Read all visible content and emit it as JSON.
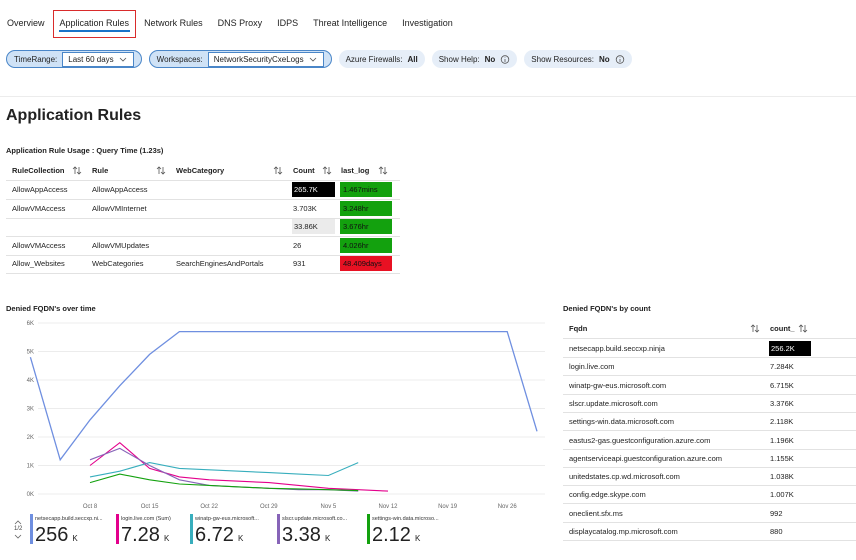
{
  "tabs": {
    "items": [
      "Overview",
      "Application Rules",
      "Network Rules",
      "DNS Proxy",
      "IDPS",
      "Threat Intelligence",
      "Investigation"
    ],
    "selected": 1
  },
  "filters": [
    {
      "label": "TimeRange:",
      "value": "Last 60 days",
      "style": "dropdown"
    },
    {
      "label": "Workspaces:",
      "value": "NetworkSecurityCxeLogs",
      "style": "dropdown"
    },
    {
      "label": "Azure Firewalls:",
      "value": "All",
      "style": "pill"
    },
    {
      "label": "Show Help:",
      "value": "No",
      "style": "info"
    },
    {
      "label": "Show Resources:",
      "value": "No",
      "style": "info"
    }
  ],
  "heading": "Application Rules",
  "usage_table": {
    "title": "Application Rule Usage : Query Time (1.23s)",
    "columns": [
      "RuleCollection",
      "Rule",
      "WebCategory",
      "Count",
      "last_log"
    ],
    "rows": [
      [
        "AllowAppAccess",
        "AllowAppAccess",
        "",
        "265.7K",
        "1.467mins"
      ],
      [
        "AllowVMAccess",
        "AllowVMInternet",
        "",
        "3.703K",
        "3.248hr"
      ],
      [
        "",
        "",
        "",
        "33.86K",
        "3.676hr"
      ],
      [
        "AllowVMAccess",
        "AllowVMUpdates",
        "",
        "26",
        "4.026hr"
      ],
      [
        "Allow_Websites",
        "WebCategories",
        "SearchEnginesAndPortals",
        "931",
        "48.409days"
      ]
    ],
    "count_bg": [
      "#000000",
      null,
      "#ebebeb",
      null,
      null
    ],
    "last_log_bg": [
      "#13a10e",
      "#13a10e",
      "#13a10e",
      "#13a10e",
      "#e81123"
    ]
  },
  "chart_data": {
    "type": "line",
    "title": "Denied FQDN's over time",
    "x": [
      "Oct 1",
      "Oct 4",
      "Oct 8",
      "Oct 11",
      "Oct 15",
      "Oct 18",
      "Oct 22",
      "Oct 25",
      "Oct 29",
      "Nov 1",
      "Nov 5",
      "Nov 8",
      "Nov 12",
      "Nov 15",
      "Nov 19",
      "Nov 22",
      "Nov 26",
      "Nov 29"
    ],
    "xticks": [
      "Oct 8",
      "Oct 15",
      "Oct 22",
      "Oct 29",
      "Nov 5",
      "Nov 12",
      "Nov 19",
      "Nov 26"
    ],
    "ylim": [
      0,
      6000
    ],
    "yticks": [
      {
        "value": 0,
        "label": "0K"
      },
      {
        "value": 1000,
        "label": "1K"
      },
      {
        "value": 2000,
        "label": "2K"
      },
      {
        "value": 3000,
        "label": "3K"
      },
      {
        "value": 4000,
        "label": "4K"
      },
      {
        "value": 5000,
        "label": "5K"
      },
      {
        "value": 6000,
        "label": "6K"
      }
    ],
    "grid": true,
    "legend_page": "1/2",
    "series": [
      {
        "name": "netsecapp.build.seccxp.ni...",
        "color": "#6f8fe0",
        "total_label": "256",
        "total_unit": "K",
        "values": [
          4800,
          1200,
          2600,
          3800,
          4900,
          5700,
          5700,
          5700,
          5700,
          5700,
          5700,
          5700,
          5700,
          5700,
          5700,
          5700,
          5700,
          2200
        ]
      },
      {
        "name": "login.live.com (Sum)",
        "color": "#e3008c",
        "total_label": "7.28",
        "total_unit": "K",
        "values": [
          null,
          null,
          1000,
          1800,
          900,
          600,
          500,
          450,
          400,
          300,
          200,
          150,
          100,
          null,
          null,
          null,
          null,
          null
        ]
      },
      {
        "name": "winatp-gw-eus.microsoft...",
        "color": "#38aebd",
        "total_label": "6.72",
        "total_unit": "K",
        "values": [
          null,
          null,
          600,
          800,
          1100,
          900,
          850,
          800,
          750,
          700,
          650,
          1100,
          null,
          null,
          null,
          null,
          null,
          null
        ]
      },
      {
        "name": "slscr.update.microsoft.co...",
        "color": "#8764b8",
        "total_label": "3.38",
        "total_unit": "K",
        "values": [
          null,
          null,
          1200,
          1600,
          1000,
          500,
          300,
          250,
          200,
          150,
          150,
          100,
          null,
          null,
          null,
          null,
          null,
          null
        ]
      },
      {
        "name": "settings-win.data.microso...",
        "color": "#13a10e",
        "total_label": "2.12",
        "total_unit": "K",
        "values": [
          null,
          null,
          400,
          700,
          500,
          350,
          300,
          250,
          200,
          180,
          150,
          120,
          null,
          null,
          null,
          null,
          null,
          null
        ]
      }
    ]
  },
  "fqdn_table": {
    "title": "Denied FQDN's by count",
    "columns": [
      "Fqdn",
      "count_"
    ],
    "rows": [
      [
        "netsecapp.build.seccxp.ninja",
        "256.2K"
      ],
      [
        "login.live.com",
        "7.284K"
      ],
      [
        "winatp-gw-eus.microsoft.com",
        "6.715K"
      ],
      [
        "slscr.update.microsoft.com",
        "3.376K"
      ],
      [
        "settings-win.data.microsoft.com",
        "2.118K"
      ],
      [
        "eastus2-gas.guestconfiguration.azure.com",
        "1.196K"
      ],
      [
        "agentserviceapi.guestconfiguration.azure.com",
        "1.155K"
      ],
      [
        "unitedstates.cp.wd.microsoft.com",
        "1.038K"
      ],
      [
        "config.edge.skype.com",
        "1.007K"
      ],
      [
        "oneclient.sfx.ms",
        "992"
      ],
      [
        "displaycatalog.mp.microsoft.com",
        "880"
      ]
    ],
    "count_bg": [
      "#000000",
      null,
      null,
      null,
      null,
      null,
      null,
      null,
      null,
      null,
      null
    ]
  }
}
